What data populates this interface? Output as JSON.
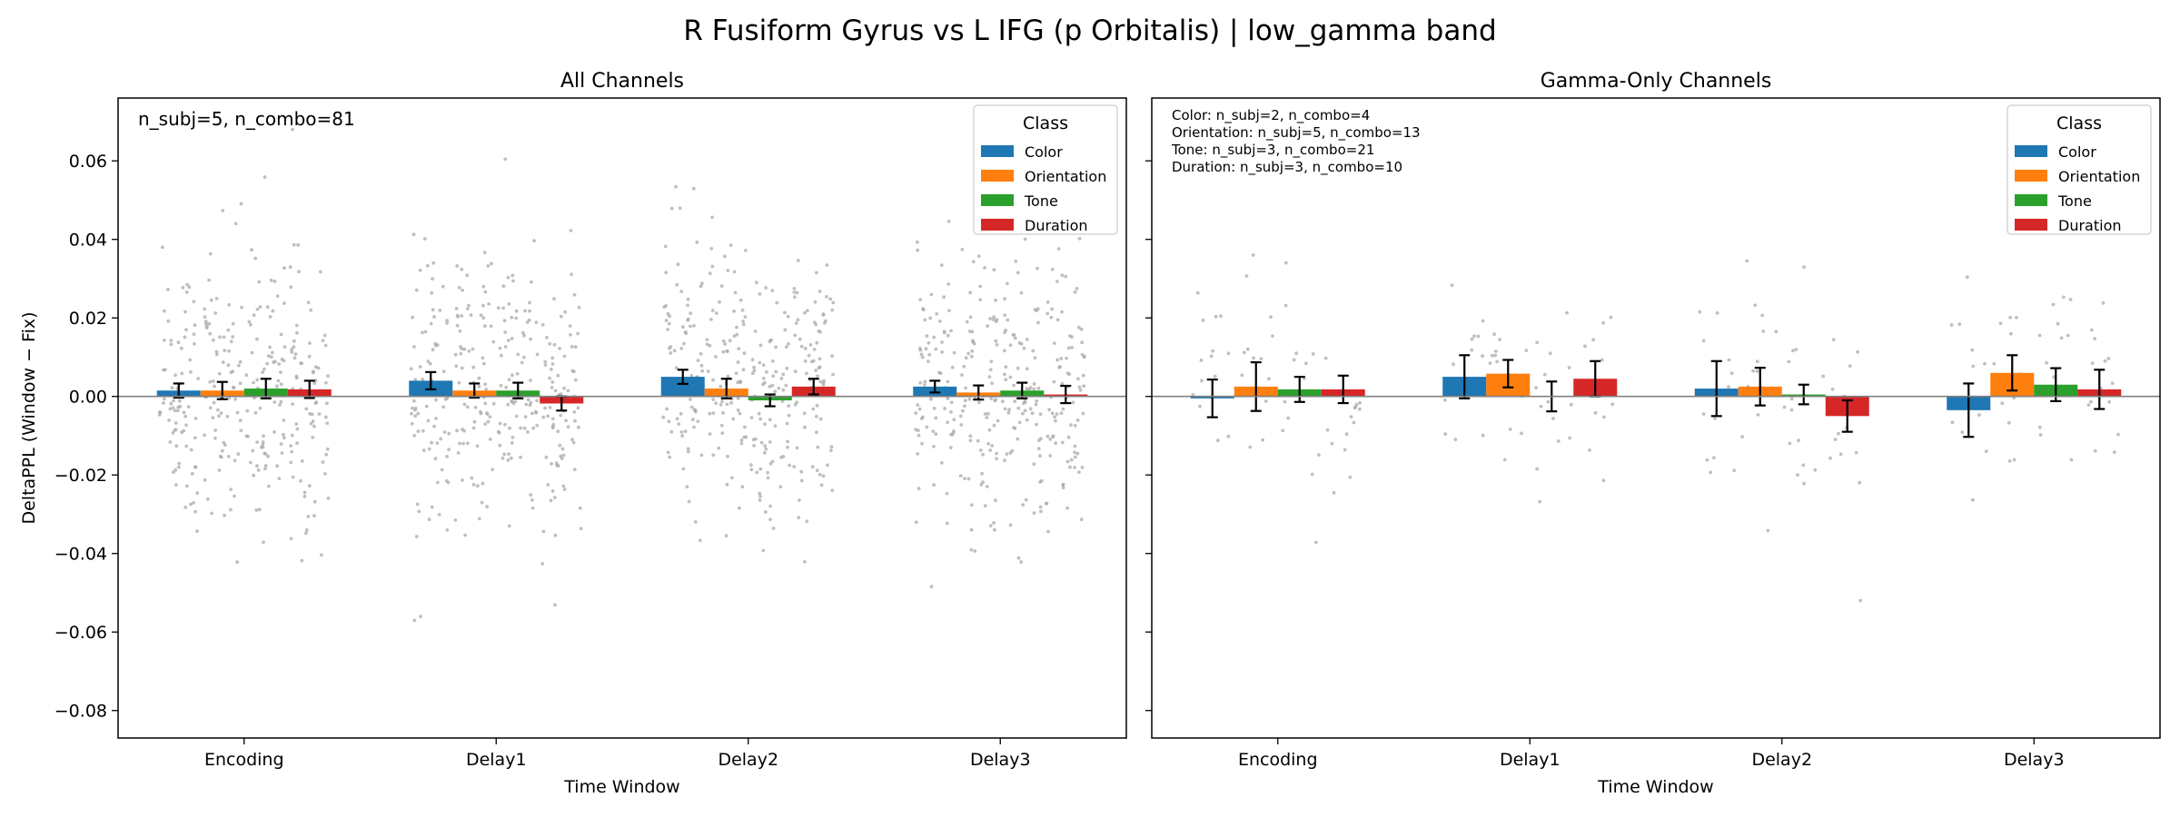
{
  "figure": {
    "suptitle": "R Fusiform Gyrus vs L IFG (p Orbitalis)  |  low_gamma band"
  },
  "legend": {
    "title": "Class",
    "placement": "top-right"
  },
  "colors": {
    "Color": "#1f77b4",
    "Orientation": "#ff7f0e",
    "Tone": "#2ca02c",
    "Duration": "#d62728",
    "points": "#a9a9a9",
    "zero_line": "#808080"
  },
  "chart_data": [
    {
      "type": "bar",
      "title": "All Channels",
      "xlabel": "Time Window",
      "ylabel": "DeltaPPL (Window − Fix)",
      "ylim": [
        -0.087,
        0.076
      ],
      "yticks": [
        "0.06",
        "0.04",
        "0.02",
        "0.00",
        "−0.02",
        "−0.04",
        "−0.06",
        "−0.08"
      ],
      "ytick_values": [
        0.06,
        0.04,
        0.02,
        0.0,
        -0.02,
        -0.04,
        -0.06,
        -0.08
      ],
      "categories": [
        "Encoding",
        "Delay1",
        "Delay2",
        "Delay3"
      ],
      "annotation": [
        "n_subj=5, n_combo=81"
      ],
      "series": [
        {
          "name": "Color",
          "values": [
            0.0015,
            0.004,
            0.005,
            0.0025
          ],
          "errors": [
            0.0018,
            0.0022,
            0.0018,
            0.0015
          ]
        },
        {
          "name": "Orientation",
          "values": [
            0.0015,
            0.0015,
            0.002,
            0.001
          ],
          "errors": [
            0.0022,
            0.0018,
            0.0025,
            0.0018
          ]
        },
        {
          "name": "Tone",
          "values": [
            0.002,
            0.0015,
            -0.001,
            0.0015
          ],
          "errors": [
            0.0025,
            0.002,
            0.0015,
            0.002
          ]
        },
        {
          "name": "Duration",
          "values": [
            0.0018,
            -0.0018,
            0.0025,
            0.0005
          ],
          "errors": [
            0.0022,
            0.0018,
            0.002,
            0.0022
          ]
        }
      ],
      "scatter": {
        "points_per_group": 80,
        "spread": 0.018,
        "extent": [
          -0.08,
          0.068
        ]
      }
    },
    {
      "type": "bar",
      "title": "Gamma-Only Channels",
      "xlabel": "Time Window",
      "ylabel": "",
      "ylim": [
        -0.087,
        0.076
      ],
      "categories": [
        "Encoding",
        "Delay1",
        "Delay2",
        "Delay3"
      ],
      "annotation": [
        "Color: n_subj=2, n_combo=4",
        "Orientation: n_subj=5, n_combo=13",
        "Tone: n_subj=3, n_combo=21",
        "Duration: n_subj=3, n_combo=10"
      ],
      "series": [
        {
          "name": "Color",
          "values": [
            -0.0005,
            0.005,
            0.002,
            -0.0035
          ],
          "errors": [
            0.0048,
            0.0055,
            0.007,
            0.0068
          ]
        },
        {
          "name": "Orientation",
          "values": [
            0.0025,
            0.0058,
            0.0025,
            0.006
          ],
          "errors": [
            0.0062,
            0.0035,
            0.0048,
            0.0045
          ]
        },
        {
          "name": "Tone",
          "values": [
            0.0018,
            0.0,
            0.0005,
            0.003
          ],
          "errors": [
            0.0032,
            0.0038,
            0.0025,
            0.0042
          ]
        },
        {
          "name": "Duration",
          "values": [
            0.0018,
            0.0045,
            -0.005,
            0.0018
          ],
          "errors": [
            0.0035,
            0.0045,
            0.004,
            0.005
          ]
        }
      ],
      "scatter": {
        "points_per_group": 14,
        "spread": 0.013,
        "extent": [
          -0.052,
          0.036
        ]
      }
    }
  ]
}
